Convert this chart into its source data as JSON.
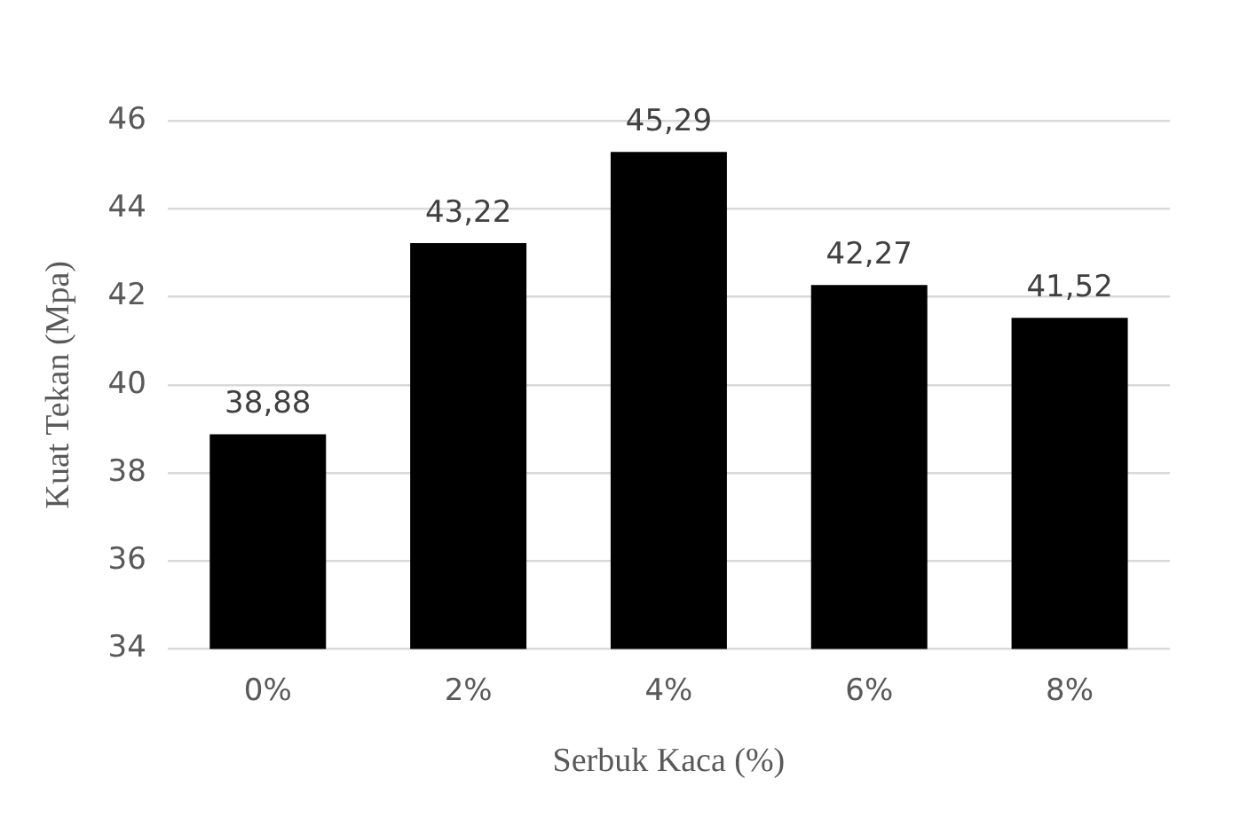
{
  "chart_data": {
    "type": "bar",
    "xlabel": "Serbuk Kaca (%)",
    "ylabel": "Kuat Tekan (Mpa)",
    "categories": [
      "0%",
      "2%",
      "4%",
      "6%",
      "8%"
    ],
    "values": [
      38.88,
      43.22,
      45.29,
      42.27,
      41.52
    ],
    "value_labels": [
      "38,88",
      "43,22",
      "45,29",
      "42,27",
      "41,52"
    ],
    "color": "#000000",
    "ylim": [
      34,
      46
    ],
    "yticks": [
      34,
      36,
      38,
      40,
      42,
      44,
      46
    ],
    "grid": "y",
    "legend": false
  }
}
